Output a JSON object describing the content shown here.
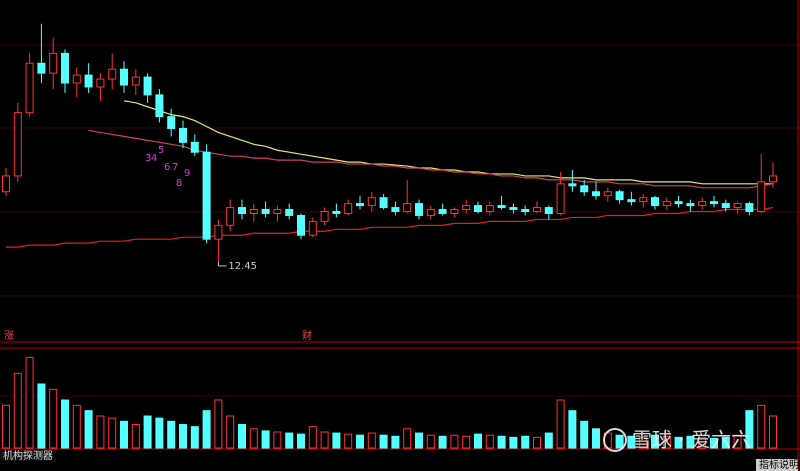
{
  "chart_data": [
    {
      "type": "candlestick",
      "open": [
        16.0,
        16.8,
        20.0,
        22.5,
        22.0,
        23.0,
        21.5,
        21.9,
        21.3,
        21.7,
        22.2,
        21.4,
        21.8,
        20.9,
        19.8,
        19.2,
        18.5,
        18.0,
        13.6,
        14.3,
        15.2,
        14.9,
        15.1,
        14.9,
        15.1,
        14.8,
        13.8,
        14.5,
        15.0,
        14.9,
        15.4,
        15.3,
        15.7,
        15.2,
        15.0,
        15.4,
        14.8,
        15.1,
        14.9,
        15.1,
        15.3,
        15.0,
        15.3,
        15.2,
        15.1,
        15.0,
        15.2,
        14.9,
        16.4,
        16.3,
        16.0,
        15.8,
        16.0,
        15.6,
        15.5,
        15.7,
        15.3,
        15.5,
        15.4,
        15.3,
        15.5,
        15.4,
        15.2,
        15.4,
        15.0,
        16.5
      ],
      "high": [
        17.2,
        20.5,
        23.0,
        24.5,
        23.8,
        23.2,
        22.3,
        22.5,
        22.0,
        23.0,
        22.6,
        22.2,
        22.0,
        21.2,
        20.2,
        19.6,
        18.9,
        18.4,
        14.6,
        15.6,
        15.6,
        15.4,
        15.5,
        15.3,
        15.4,
        14.9,
        14.7,
        15.2,
        15.4,
        15.6,
        15.8,
        16.0,
        15.9,
        15.5,
        16.6,
        15.6,
        15.3,
        15.4,
        15.2,
        15.6,
        15.5,
        15.5,
        15.8,
        15.4,
        15.3,
        15.5,
        15.3,
        17.0,
        17.1,
        16.6,
        16.5,
        16.2,
        16.1,
        16.0,
        15.9,
        15.8,
        15.7,
        15.8,
        15.6,
        15.7,
        15.8,
        15.6,
        15.5,
        15.5,
        17.9,
        17.5
      ],
      "low": [
        15.8,
        16.5,
        19.8,
        21.5,
        21.2,
        21.0,
        20.8,
        21.0,
        20.6,
        21.2,
        21.0,
        20.9,
        20.5,
        19.5,
        18.8,
        18.2,
        17.8,
        13.4,
        12.45,
        14.0,
        14.6,
        14.5,
        14.7,
        14.5,
        14.6,
        13.6,
        13.7,
        14.3,
        14.7,
        14.8,
        15.1,
        15.0,
        15.1,
        14.8,
        14.9,
        14.6,
        14.6,
        14.8,
        14.7,
        14.9,
        14.9,
        14.8,
        15.1,
        14.9,
        14.8,
        14.9,
        14.6,
        14.8,
        16.0,
        15.8,
        15.6,
        15.5,
        15.4,
        15.3,
        15.2,
        15.1,
        15.1,
        15.2,
        15.0,
        15.1,
        15.2,
        15.0,
        14.9,
        14.8,
        14.9,
        16.2
      ],
      "close": [
        16.8,
        20.0,
        22.5,
        22.0,
        23.0,
        21.5,
        21.9,
        21.3,
        21.7,
        22.2,
        21.4,
        21.8,
        20.9,
        19.8,
        19.2,
        18.5,
        18.0,
        13.6,
        14.3,
        15.2,
        14.9,
        15.1,
        14.9,
        15.1,
        14.8,
        13.8,
        14.5,
        15.0,
        14.9,
        15.4,
        15.3,
        15.7,
        15.2,
        15.0,
        15.4,
        14.8,
        15.1,
        14.9,
        15.1,
        15.3,
        15.0,
        15.3,
        15.2,
        15.1,
        15.0,
        15.2,
        14.9,
        16.4,
        16.3,
        16.0,
        15.8,
        16.0,
        15.6,
        15.5,
        15.7,
        15.3,
        15.5,
        15.4,
        15.3,
        15.5,
        15.4,
        15.2,
        15.4,
        15.0,
        16.5,
        16.8
      ],
      "up_color": "#ff3232",
      "down_color": "#54ffff",
      "series": [
        {
          "color": "#e02020",
          "values": [
            13.2,
            13.2,
            13.3,
            13.3,
            13.3,
            13.4,
            13.4,
            13.4,
            13.5,
            13.5,
            13.5,
            13.6,
            13.6,
            13.6,
            13.6,
            13.7,
            13.7,
            13.7,
            13.8,
            13.8,
            13.8,
            13.9,
            13.9,
            13.9,
            13.9,
            14.0,
            14.0,
            14.0,
            14.1,
            14.1,
            14.1,
            14.2,
            14.2,
            14.2,
            14.2,
            14.3,
            14.3,
            14.3,
            14.4,
            14.4,
            14.4,
            14.5,
            14.5,
            14.5,
            14.5,
            14.6,
            14.6,
            14.6,
            14.7,
            14.7,
            14.7,
            14.8,
            14.8,
            14.8,
            14.8,
            14.9,
            14.9,
            14.9,
            15.0,
            15.0,
            15.0,
            15.1,
            15.1,
            15.1,
            15.1,
            15.2
          ]
        },
        {
          "color": "#e6e67a",
          "values": [
            null,
            null,
            null,
            null,
            null,
            null,
            null,
            null,
            null,
            null,
            20.6,
            20.5,
            20.3,
            20.1,
            19.9,
            19.8,
            19.6,
            19.3,
            19.0,
            18.8,
            18.6,
            18.4,
            18.3,
            18.1,
            18.0,
            17.9,
            17.8,
            17.7,
            17.6,
            17.5,
            17.5,
            17.4,
            17.4,
            17.35,
            17.3,
            17.2,
            17.2,
            17.1,
            17.1,
            17.0,
            17.0,
            16.9,
            16.9,
            16.9,
            16.8,
            16.8,
            16.8,
            16.7,
            16.7,
            16.7,
            16.6,
            16.6,
            16.6,
            16.6,
            16.5,
            16.5,
            16.5,
            16.5,
            16.5,
            16.4,
            16.4,
            16.4,
            16.4,
            16.4,
            16.4,
            16.4
          ]
        },
        {
          "color": "#d04060",
          "values": [
            null,
            null,
            null,
            null,
            null,
            null,
            null,
            19.1,
            19.0,
            18.9,
            18.8,
            18.7,
            18.6,
            18.5,
            18.4,
            18.3,
            18.1,
            18.0,
            17.9,
            17.8,
            17.8,
            17.7,
            17.7,
            17.6,
            17.6,
            17.6,
            17.5,
            17.5,
            17.5,
            17.4,
            17.4,
            17.4,
            17.3,
            17.3,
            17.2,
            17.2,
            17.1,
            17.1,
            17.0,
            17.0,
            16.9,
            16.9,
            16.8,
            16.8,
            16.7,
            16.7,
            16.6,
            16.6,
            16.6,
            16.5,
            16.5,
            16.5,
            16.4,
            16.4,
            16.4,
            16.3,
            16.3,
            16.3,
            16.3,
            16.2,
            16.2,
            16.2,
            16.2,
            16.2,
            16.3,
            16.4
          ]
        }
      ],
      "ylim": [
        8.5,
        25.7
      ],
      "annotations": [
        "12.45",
        "3",
        "4",
        "5",
        "6",
        "7",
        "8",
        "9",
        "涨",
        "财"
      ]
    },
    {
      "type": "bar",
      "values": [
        40,
        70,
        85,
        60,
        55,
        45,
        40,
        35,
        30,
        28,
        25,
        22,
        30,
        28,
        25,
        22,
        20,
        35,
        45,
        30,
        22,
        18,
        16,
        15,
        14,
        13,
        20,
        15,
        14,
        13,
        12,
        14,
        12,
        11,
        18,
        14,
        12,
        11,
        12,
        11,
        13,
        12,
        11,
        10,
        11,
        10,
        14,
        45,
        35,
        25,
        18,
        14,
        12,
        11,
        10,
        12,
        11,
        10,
        11,
        10,
        9,
        10,
        12,
        35,
        40,
        30
      ],
      "ylim": [
        0,
        90
      ]
    }
  ],
  "indicator_name": "机构探测器",
  "indicator_help": "指标说明",
  "watermark": "雪球 · 爱六六"
}
